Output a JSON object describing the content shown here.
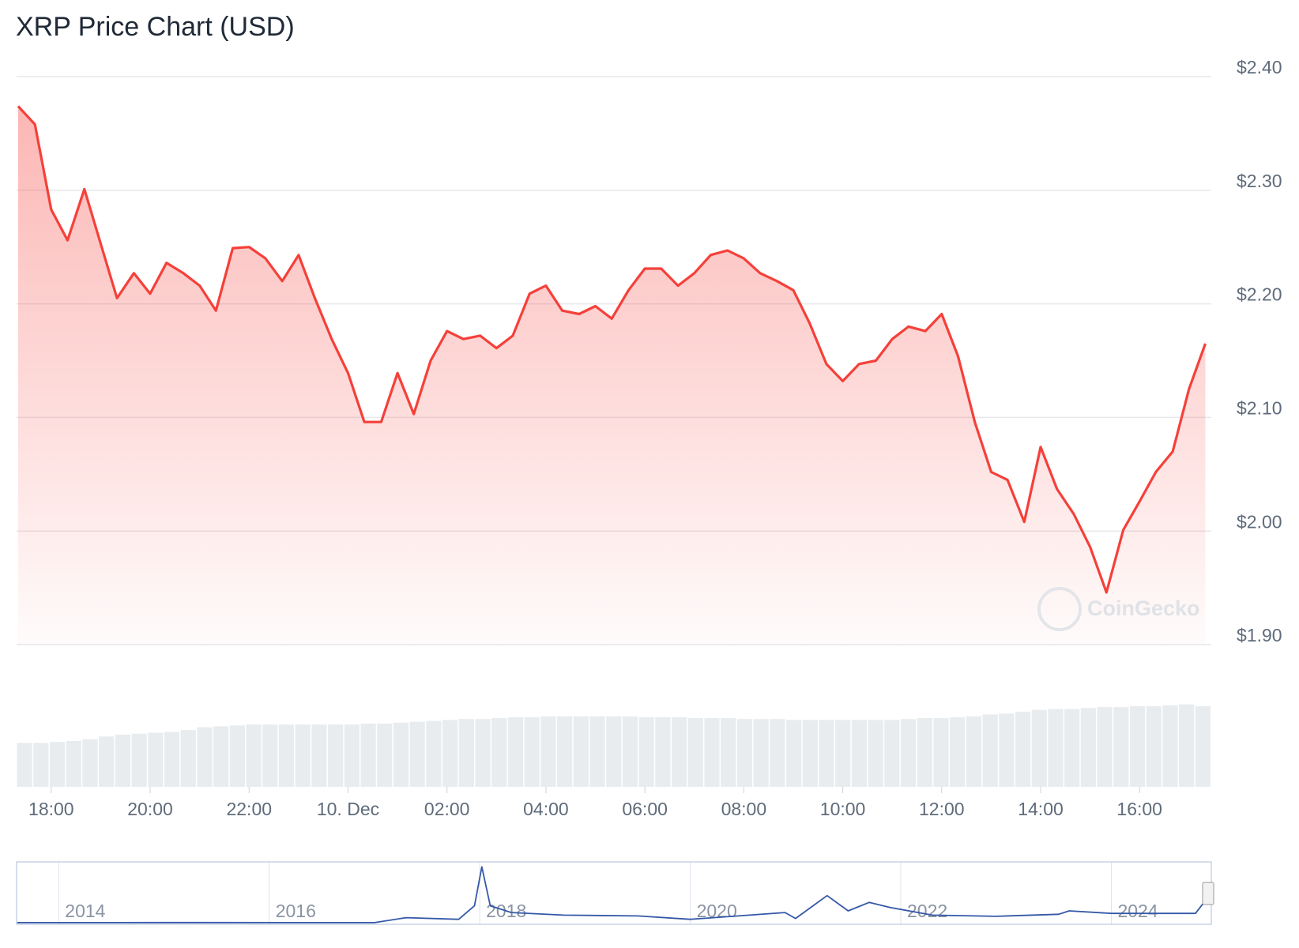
{
  "chart_data": {
    "type": "line",
    "title": "XRP Price Chart (USD)",
    "watermark": "CoinGecko",
    "color": "#f5403a",
    "grid": true,
    "x": [
      17.33,
      17.67,
      18,
      18.33,
      18.67,
      19,
      19.33,
      19.67,
      20,
      20.33,
      20.67,
      21,
      21.33,
      21.67,
      22,
      22.33,
      22.67,
      23,
      23.33,
      23.67,
      24,
      24.33,
      24.67,
      25,
      25.33,
      25.67,
      26,
      26.33,
      26.67,
      27,
      27.33,
      27.67,
      28,
      28.33,
      28.67,
      29,
      29.33,
      29.67,
      30,
      30.33,
      30.67,
      31,
      31.33,
      31.67,
      32,
      32.33,
      32.67,
      33,
      33.33,
      33.67,
      34,
      34.33,
      34.67,
      35,
      35.33,
      35.67,
      36,
      36.33,
      36.67,
      37,
      37.33,
      37.67,
      38,
      38.33,
      38.67,
      39,
      39.33,
      39.67,
      40,
      40.33,
      40.67,
      41,
      41.33
    ],
    "values": [
      2.374,
      2.358,
      2.283,
      2.256,
      2.301,
      2.253,
      2.205,
      2.227,
      2.209,
      2.236,
      2.227,
      2.216,
      2.194,
      2.249,
      2.25,
      2.24,
      2.22,
      2.243,
      2.205,
      2.169,
      2.139,
      2.096,
      2.096,
      2.139,
      2.103,
      2.15,
      2.176,
      2.169,
      2.172,
      2.161,
      2.172,
      2.209,
      2.216,
      2.194,
      2.191,
      2.198,
      2.187,
      2.212,
      2.231,
      2.231,
      2.216,
      2.227,
      2.243,
      2.247,
      2.24,
      2.227,
      2.22,
      2.212,
      2.183,
      2.147,
      2.132,
      2.147,
      2.15,
      2.169,
      2.18,
      2.176,
      2.191,
      2.154,
      2.096,
      2.052,
      2.045,
      2.008,
      2.074,
      2.037,
      2.015,
      1.986,
      1.946,
      2.001,
      2.026,
      2.052,
      2.07,
      2.125,
      2.165
    ],
    "xlim": [
      17.3,
      41.45
    ],
    "ylim": [
      1.9,
      2.4
    ],
    "yticks": [
      {
        "value": 2.4,
        "label": "$2.40"
      },
      {
        "value": 2.3,
        "label": "$2.30"
      },
      {
        "value": 2.2,
        "label": "$2.20"
      },
      {
        "value": 2.1,
        "label": "$2.10"
      },
      {
        "value": 2.0,
        "label": "$2.00"
      },
      {
        "value": 1.9,
        "label": "$1.90"
      }
    ],
    "xticks": [
      {
        "value": 18,
        "label": "18:00"
      },
      {
        "value": 20,
        "label": "20:00"
      },
      {
        "value": 22,
        "label": "22:00"
      },
      {
        "value": 24,
        "label": "10. Dec"
      },
      {
        "value": 26,
        "label": "02:00"
      },
      {
        "value": 28,
        "label": "04:00"
      },
      {
        "value": 30,
        "label": "06:00"
      },
      {
        "value": 32,
        "label": "08:00"
      },
      {
        "value": 34,
        "label": "10:00"
      },
      {
        "value": 36,
        "label": "12:00"
      },
      {
        "value": 38,
        "label": "14:00"
      },
      {
        "value": 40,
        "label": "16:00"
      }
    ],
    "volume": {
      "color": "#e9ecef",
      "ylim": [
        0,
        100
      ],
      "values": [
        48,
        48,
        49,
        50,
        52,
        55,
        57,
        58,
        59,
        60,
        62,
        65,
        66,
        67,
        68,
        68,
        68,
        68,
        68,
        68,
        68,
        69,
        69,
        70,
        71,
        72,
        73,
        74,
        74,
        75,
        76,
        76,
        77,
        77,
        77,
        77,
        77,
        77,
        76,
        76,
        76,
        75,
        75,
        75,
        74,
        74,
        74,
        73,
        73,
        73,
        73,
        73,
        73,
        73,
        74,
        75,
        75,
        76,
        77,
        79,
        80,
        82,
        84,
        85,
        85,
        86,
        87,
        87,
        88,
        88,
        89,
        90,
        88
      ]
    },
    "navigator": {
      "type": "line",
      "color": "#3558a8",
      "x": [
        2013.6,
        2015,
        2017,
        2017.3,
        2017.8,
        2017.95,
        2018.02,
        2018.1,
        2018.3,
        2018.8,
        2019.5,
        2020,
        2020.9,
        2021,
        2021.3,
        2021.5,
        2021.7,
        2021.9,
        2022.3,
        2022.9,
        2023.5,
        2023.6,
        2024,
        2024.8,
        2024.88,
        2024.94
      ],
      "values": [
        0.005,
        0.01,
        0.006,
        0.3,
        0.2,
        1.0,
        3.3,
        1.0,
        0.6,
        0.45,
        0.4,
        0.2,
        0.6,
        0.25,
        1.6,
        0.7,
        1.2,
        0.9,
        0.45,
        0.38,
        0.5,
        0.7,
        0.55,
        0.55,
        1.2,
        2.4
      ],
      "xlim": [
        2013.6,
        2024.95
      ],
      "ylim": [
        0,
        3.5
      ],
      "xticks": [
        2014,
        2016,
        2018,
        2020,
        2022,
        2024
      ]
    }
  }
}
